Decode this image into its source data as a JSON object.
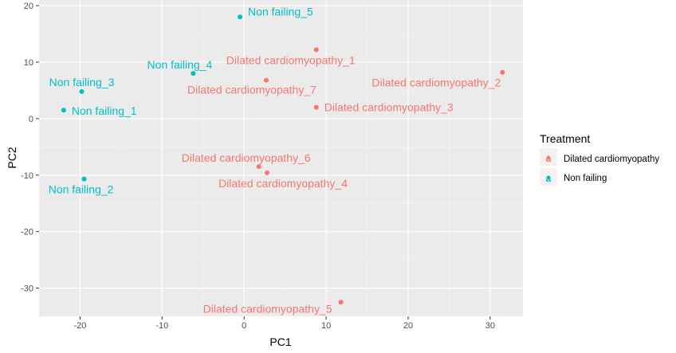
{
  "chart_data": {
    "type": "scatter",
    "xlabel": "PC1",
    "ylabel": "PC2",
    "xlim": [
      -25,
      34
    ],
    "ylim": [
      -35,
      21
    ],
    "x_ticks": [
      -20,
      -10,
      0,
      10,
      20,
      30
    ],
    "y_ticks": [
      -30,
      -20,
      -10,
      0,
      10,
      20
    ],
    "grid": true,
    "legend": {
      "title": "Treatment",
      "placement": "right",
      "entries": [
        {
          "label": "Dilated cardiomyopathy",
          "color": "#F8766D"
        },
        {
          "label": "Non failing",
          "color": "#00BFC4"
        }
      ]
    },
    "series": [
      {
        "group": "Dilated cardiomyopathy",
        "color": "#F8766D",
        "points": [
          {
            "label": "Dilated cardiomyopathy_1",
            "x": 8.8,
            "y": 12.2
          },
          {
            "label": "Dilated cardiomyopathy_2",
            "x": 31.5,
            "y": 8.2
          },
          {
            "label": "Dilated cardiomyopathy_3",
            "x": 8.8,
            "y": 2.0
          },
          {
            "label": "Dilated cardiomyopathy_4",
            "x": 2.8,
            "y": -9.6
          },
          {
            "label": "Dilated cardiomyopathy_5",
            "x": 11.8,
            "y": -32.5
          },
          {
            "label": "Dilated cardiomyopathy_6",
            "x": 1.8,
            "y": -8.5
          },
          {
            "label": "Dilated cardiomyopathy_7",
            "x": 2.7,
            "y": 6.8
          }
        ]
      },
      {
        "group": "Non failing",
        "color": "#00BFC4",
        "points": [
          {
            "label": "Non failing_1",
            "x": -22.0,
            "y": 1.5
          },
          {
            "label": "Non failing_2",
            "x": -19.5,
            "y": -10.7
          },
          {
            "label": "Non failing_3",
            "x": -19.8,
            "y": 4.8
          },
          {
            "label": "Non failing_4",
            "x": -6.2,
            "y": 8.0
          },
          {
            "label": "Non failing_5",
            "x": -0.5,
            "y": 18.0
          }
        ]
      }
    ]
  }
}
